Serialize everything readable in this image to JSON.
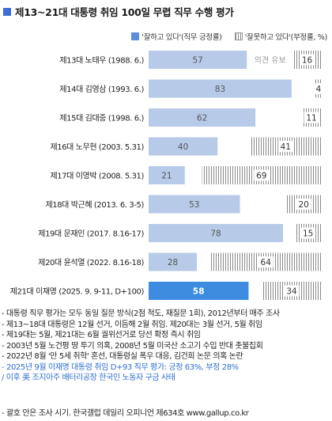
{
  "title": "제13~21대 대통령 취임 100일 무렵 직무 수행 평가",
  "legend": {
    "positive": "'잘하고 있다'(직무 긍정률)",
    "negative": "'잘못하고 있다'(부정률, %)"
  },
  "colors": {
    "title_square": "#3d6fd6",
    "positive_bar": "#b7cbe8",
    "positive_bar_highlight": "#3d8ce0",
    "negative_hatch": "#888888",
    "note_highlight": "#2b6fd0"
  },
  "chart_data": {
    "type": "bar",
    "orientation": "horizontal",
    "stacked": true,
    "xlim": [
      0,
      100
    ],
    "categories": [
      "제13대 노태우 (1988. 6.)",
      "제14대 김영삼 (1993. 6.)",
      "제15대 김대중 (1998. 6.)",
      "제16대 노무현 (2003. 5.31)",
      "제17대 이명박 (2008. 5.31)",
      "제18대 박근혜 (2013. 6. 3-5)",
      "제19대 문재인 (2017. 8.16-17)",
      "제20대 윤석열 (2022. 8.16-18)",
      "제21대 이재명 (2025. 9. 9-11, D+100)"
    ],
    "series": [
      {
        "name": "'잘하고 있다'(직무 긍정률)",
        "values": [
          57,
          83,
          62,
          40,
          21,
          53,
          78,
          28,
          58
        ]
      },
      {
        "name": "'잘못하고 있다'(부정률, %)",
        "values": [
          16,
          4,
          11,
          41,
          69,
          20,
          15,
          64,
          34
        ]
      }
    ],
    "annotations": [
      {
        "category": "제13대 노태우 (1988. 6.)",
        "text": "의견 유보"
      }
    ],
    "highlight_category": "제21대 이재명 (2025. 9. 9-11, D+100)",
    "grid": false,
    "legend_position": "top-right"
  },
  "notes": [
    "- 대통령 직무 평가는 모두 동일 질문 방식(2점 척도, 재질문 1회), 2012년부터 매주 조사",
    "- 제13~18대 대통령은 12월 선거, 이듬해 2월 취임. 제20대는 3월 선거, 5월 취임",
    "- 제19대는 5월, 제21대는 6월 궐위선거로 당선 확정 즉시 취임",
    "- 2003년 5월 노건평 땅 투기 의혹, 2008년 5월 미국산 소고기 수입 반대 촛불집회",
    "- 2022년 8월 '만 5세 취학' 혼선, 대통령실 폭우 대응, 김건희 논문 의혹 논란",
    "- 2025년 9월 이재명 대통령 취임 D+93 직무 평가: 긍정 63%, 부정 28%",
    "  / 이후 美 조지아주 배터리공장 한국인 노동자 구금 사태"
  ],
  "source": "- 괄호 안은 조사 시기. 한국갤럽 데일리 오피니언 제634호 www.gallup.co.kr"
}
